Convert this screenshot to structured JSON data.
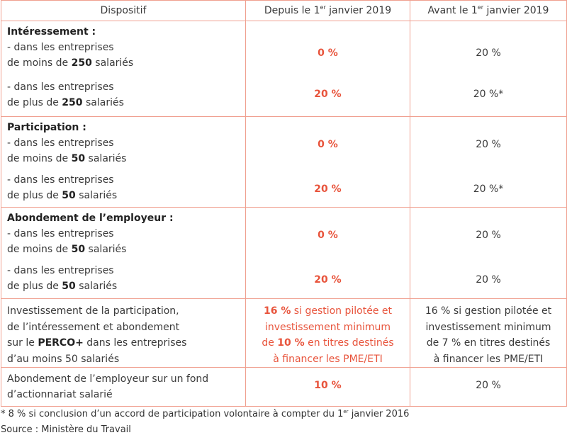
{
  "headers": {
    "col1": "Dispositif",
    "col2_pre": "Depuis le 1",
    "col2_sup": "er",
    "col2_post": " janvier 2019",
    "col3_pre": "Avant le 1",
    "col3_sup": "er",
    "col3_post": " janvier 2019"
  },
  "groups": [
    {
      "title": "Intéressement :",
      "sub1_line1": "- dans les entreprises",
      "sub1_line2_pre": "de moins de ",
      "sub1_line2_bold": "250",
      "sub1_line2_post": " salariés",
      "sub2_line1": "- dans les entreprises",
      "sub2_line2_pre": "de plus de ",
      "sub2_line2_bold": "250",
      "sub2_line2_post": " salariés",
      "new1": "0 %",
      "new2": "20 %",
      "old1": "20 %",
      "old2": "20 %*"
    },
    {
      "title": "Participation :",
      "sub1_line1": "- dans les entreprises",
      "sub1_line2_pre": "de moins de ",
      "sub1_line2_bold": "50",
      "sub1_line2_post": " salariés",
      "sub2_line1": "- dans les entreprises",
      "sub2_line2_pre": "de plus de ",
      "sub2_line2_bold": "50",
      "sub2_line2_post": " salariés",
      "new1": "0 %",
      "new2": "20 %",
      "old1": "20 %",
      "old2": "20 %*"
    },
    {
      "title": "Abondement de l’employeur :",
      "sub1_line1": "- dans les entreprises",
      "sub1_line2_pre": "de moins de ",
      "sub1_line2_bold": "50",
      "sub1_line2_post": " salariés",
      "sub2_line1": "- dans les entreprises",
      "sub2_line2_pre": "de plus de ",
      "sub2_line2_bold": "50",
      "sub2_line2_post": " salariés",
      "new1": "0 %",
      "new2": "20 %",
      "old1": "20 %",
      "old2": "20 %"
    }
  ],
  "perco": {
    "line1": "Investissement de la participation,",
    "line2": "de l’intéressement et abondement",
    "line3_pre": "sur le ",
    "line3_bold": "PERCO+",
    "line3_post": " dans les entreprises",
    "line4": "d’au moins 50 salariés",
    "new_l1_bold": "16 %",
    "new_l1_post": " si gestion pilotée et",
    "new_l2": "investissement minimum",
    "new_l3_pre": "de ",
    "new_l3_bold": "10 %",
    "new_l3_post": " en titres destinés",
    "new_l4": "à financer les PME/ETI",
    "old_l1": "16 % si gestion pilotée et",
    "old_l2": "investissement minimum",
    "old_l3": "de 7 % en titres destinés",
    "old_l4": "à financer les PME/ETI"
  },
  "actionnariat": {
    "line1": "Abondement de l’employeur sur un fond",
    "line2": "d’actionnariat salarié",
    "new": "10 %",
    "old": "20 %"
  },
  "footnote": {
    "pre": "* 8 % si conclusion d’un accord de participation volontaire à compter du 1",
    "sup": "er",
    "post": " janvier 2016"
  },
  "source": "Source : Ministère du Travail",
  "colors": {
    "accent": "#e8543c",
    "border": "#f0a090",
    "text": "#3a3a3a"
  }
}
